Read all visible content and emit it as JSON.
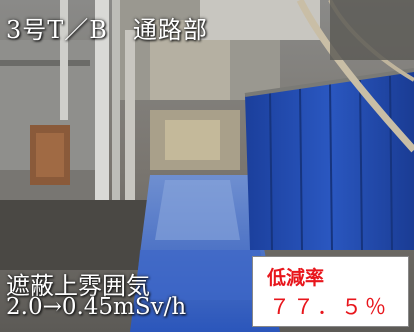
{
  "photo": {
    "title": "3号T／B　通路部",
    "caption_line1": "遮蔽上雰囲気",
    "caption_line2": "2.0→0.45mSv/h"
  },
  "reduction": {
    "label": "低減率",
    "value": "７７．５％"
  },
  "colors": {
    "reduction_text": "#e8161c",
    "caption_text": "#ffffff",
    "blue_tarp": "#1d45a8"
  }
}
